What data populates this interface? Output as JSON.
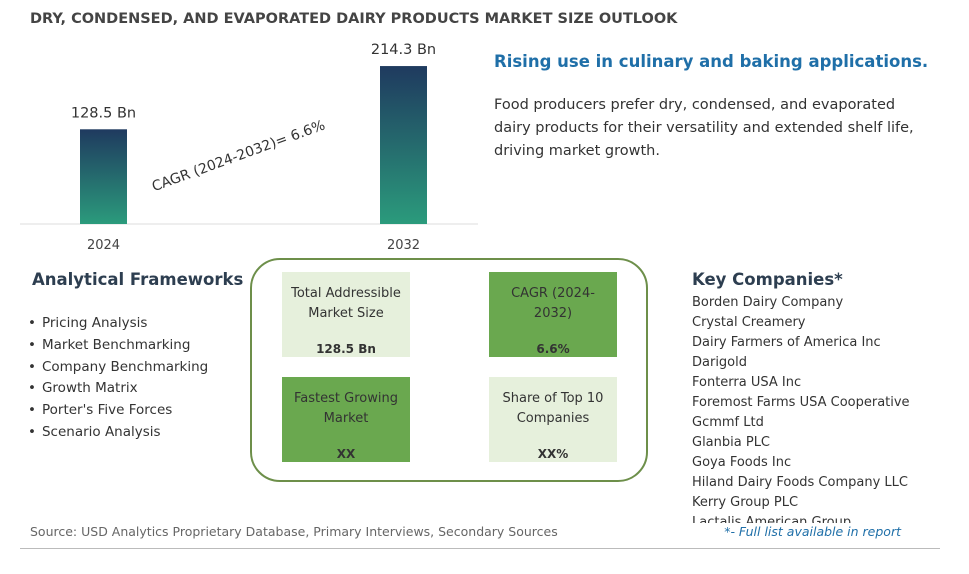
{
  "title": "DRY, CONDENSED, AND EVAPORATED DAIRY PRODUCTS MARKET SIZE OUTLOOK",
  "chart_data": {
    "type": "bar",
    "categories": [
      "2024",
      "2032"
    ],
    "values": [
      128.5,
      214.3
    ],
    "value_labels": [
      "128.5 Bn",
      "214.3 Bn"
    ],
    "annotation": "CAGR (2024-2032)=  6.6%"
  },
  "headline": "Rising use in culinary and baking applications.",
  "description": "Food producers prefer dry, condensed, and evaporated dairy products for their versatility and extended shelf life, driving market growth.",
  "frameworks": {
    "title": "Analytical Frameworks",
    "items": [
      "Pricing Analysis",
      "Market Benchmarking",
      "Company Benchmarking",
      "Growth Matrix",
      "Porter's Five Forces",
      "Scenario Analysis"
    ]
  },
  "boxes": [
    {
      "label": "Total Addressible Market Size",
      "value": "128.5 Bn"
    },
    {
      "label": "CAGR (2024-2032)",
      "value": "6.6%"
    },
    {
      "label": "Fastest Growing Market",
      "value": "XX"
    },
    {
      "label": "Share of Top 10 Companies",
      "value": "XX%"
    }
  ],
  "companies": {
    "title": "Key Companies*",
    "items": [
      "Borden Dairy Company",
      "Crystal Creamery",
      "Dairy Farmers of America Inc",
      "Darigold",
      "Fonterra USA Inc",
      "Foremost Farms USA Cooperative",
      "Gcmmf Ltd",
      "Glanbia PLC",
      "Goya Foods Inc",
      "Hiland Dairy Foods Company LLC",
      "Kerry Group PLC",
      "Lactalis American Group"
    ]
  },
  "source": "Source: USD Analytics Proprietary Database, Primary Interviews, Secondary Sources",
  "footnote": "*- Full list available in report"
}
